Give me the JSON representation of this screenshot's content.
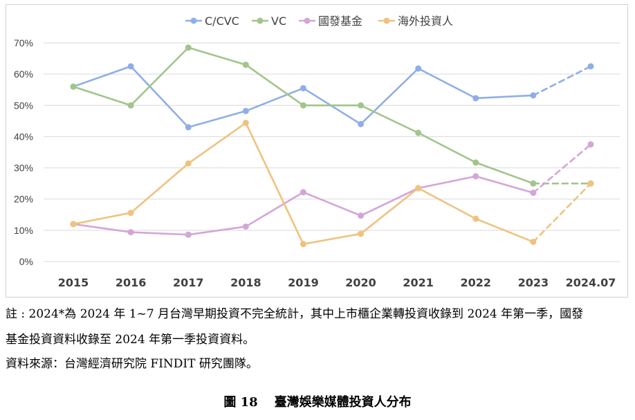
{
  "chart_data": {
    "type": "line",
    "categories": [
      "2015",
      "2016",
      "2017",
      "2018",
      "2019",
      "2020",
      "2021",
      "2022",
      "2023",
      "2024.07"
    ],
    "ylim": [
      0,
      70
    ],
    "ytick_labels": [
      "0%",
      "10%",
      "20%",
      "30%",
      "40%",
      "50%",
      "60%",
      "70%"
    ],
    "grid": "horizontal",
    "legend_position": "top-center",
    "projected_segment": "last segment dashed (2023 to 2024.07)",
    "series": [
      {
        "name": "C/CVC",
        "color": "#8faee8",
        "values": [
          56,
          62.5,
          43,
          48.2,
          55.5,
          44,
          61.8,
          52.3,
          53.2,
          62.5
        ]
      },
      {
        "name": "VC",
        "color": "#a3c48a",
        "values": [
          56,
          50,
          68.5,
          63,
          50,
          50,
          41.2,
          31.7,
          25,
          25
        ]
      },
      {
        "name": "國發基金",
        "color": "#d4a5d8",
        "values": [
          12,
          9.4,
          8.6,
          11.2,
          22.2,
          14.7,
          23.5,
          27.3,
          22,
          37.5
        ]
      },
      {
        "name": "海外投資人",
        "color": "#f0c27e",
        "values": [
          12,
          15.6,
          31.4,
          44.4,
          5.6,
          8.9,
          23.5,
          13.7,
          6.3,
          25
        ]
      }
    ]
  },
  "notes": {
    "line1": "註 : 2024*為 2024 年 1~7 月台灣早期投資不完全統計，其中上市櫃企業轉投資收錄到 2024 年第一季，國發",
    "line2": "基金投資資料收錄至 2024 年第一季投資資料。",
    "source": "資料來源：台灣經濟研究院 FINDIT 研究團隊。"
  },
  "caption": {
    "number": "圖 18",
    "title": "臺灣娛樂媒體投資人分布"
  }
}
